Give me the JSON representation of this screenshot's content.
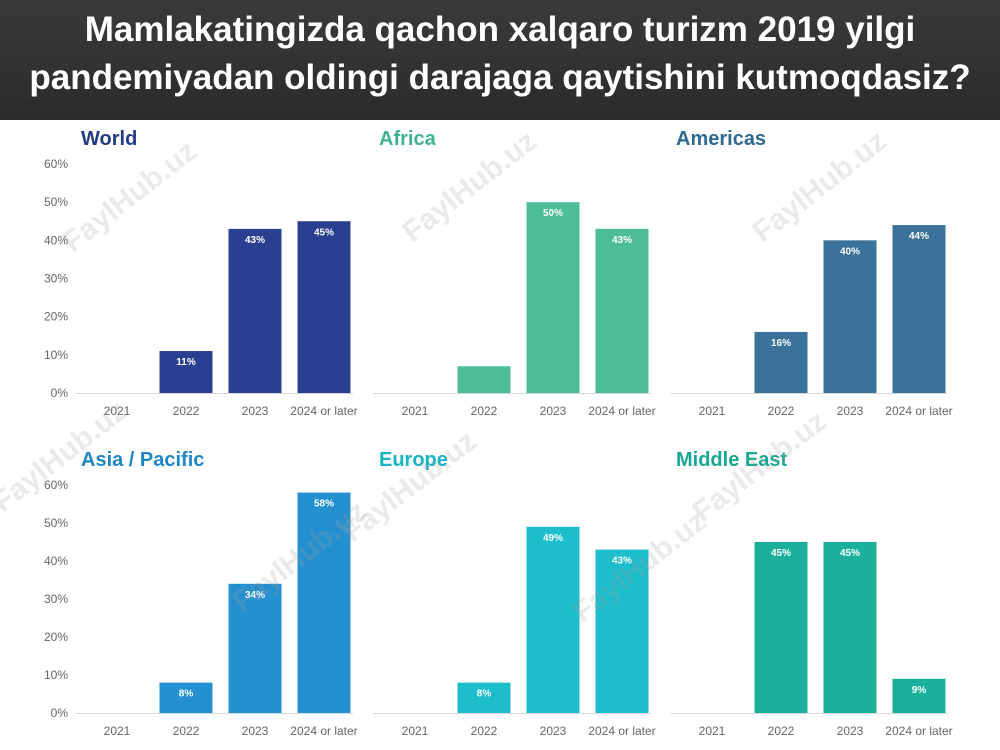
{
  "header": {
    "title": "Mamlakatingizda qachon xalqaro turizm 2019 yilgi pandemiyadan oldingi darajaga qaytishini kutmoqdasiz?"
  },
  "watermark": {
    "text": "FaylHub.uz"
  },
  "chart_data": [
    {
      "type": "bar",
      "title": "World",
      "color": "#2a3f8f",
      "title_color": "#233a84",
      "categories": [
        "2021",
        "2022",
        "2023",
        "2024 or later"
      ],
      "values": [
        0,
        11,
        43,
        45
      ],
      "labels": [
        "",
        "11%",
        "43%",
        "45%"
      ],
      "ylim": [
        0,
        60
      ],
      "yticks": [
        "0%",
        "10%",
        "20%",
        "30%",
        "40%",
        "50%",
        "60%"
      ],
      "grid": false,
      "legend": "none"
    },
    {
      "type": "bar",
      "title": "Africa",
      "color": "#4dbd98",
      "title_color": "#3fb28e",
      "categories": [
        "2021",
        "2022",
        "2023",
        "2024 or later"
      ],
      "values": [
        0,
        7,
        50,
        43
      ],
      "labels": [
        "",
        "",
        "50%",
        "43%"
      ],
      "ylim": [
        0,
        60
      ],
      "yticks": [],
      "grid": false,
      "legend": "none"
    },
    {
      "type": "bar",
      "title": "Americas",
      "color": "#3a7299",
      "title_color": "#2f6a93",
      "categories": [
        "2021",
        "2022",
        "2023",
        "2024 or later"
      ],
      "values": [
        0,
        16,
        40,
        44
      ],
      "labels": [
        "",
        "16%",
        "40%",
        "44%"
      ],
      "ylim": [
        0,
        60
      ],
      "yticks": [],
      "grid": false,
      "legend": "none"
    },
    {
      "type": "bar",
      "title": "Asia / Pacific",
      "color": "#2490d0",
      "title_color": "#1f86c6",
      "categories": [
        "2021",
        "2022",
        "2023",
        "2024 or later"
      ],
      "values": [
        0,
        8,
        34,
        58
      ],
      "labels": [
        "",
        "8%",
        "34%",
        "58%"
      ],
      "ylim": [
        0,
        60
      ],
      "yticks": [
        "0%",
        "10%",
        "20%",
        "30%",
        "40%",
        "50%",
        "60%"
      ],
      "grid": false,
      "legend": "none"
    },
    {
      "type": "bar",
      "title": "Europe",
      "color": "#1dbdcc",
      "title_color": "#17b3c3",
      "categories": [
        "2021",
        "2022",
        "2023",
        "2024 or later"
      ],
      "values": [
        0,
        8,
        49,
        43
      ],
      "labels": [
        "",
        "8%",
        "49%",
        "43%"
      ],
      "ylim": [
        0,
        60
      ],
      "yticks": [],
      "grid": false,
      "legend": "none"
    },
    {
      "type": "bar",
      "title": "Middle East",
      "color": "#1ab09b",
      "title_color": "#17a892",
      "categories": [
        "2021",
        "2022",
        "2023",
        "2024 or later"
      ],
      "values": [
        0,
        45,
        45,
        9
      ],
      "labels": [
        "",
        "45%",
        "45%",
        "9%"
      ],
      "ylim": [
        0,
        60
      ],
      "yticks": [],
      "grid": false,
      "legend": "none"
    }
  ]
}
